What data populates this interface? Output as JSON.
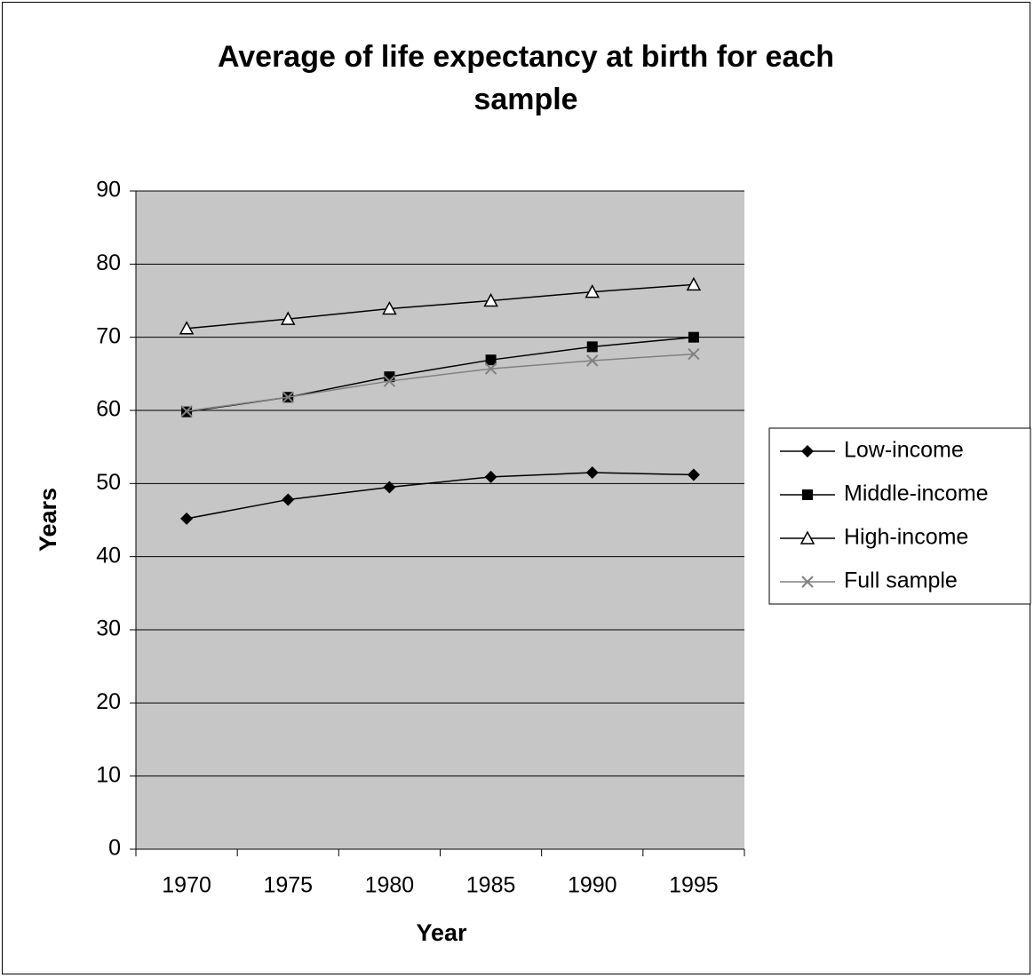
{
  "chart_data": {
    "type": "line",
    "title": "Average of life expectancy at birth for each sample",
    "x_label": "Year",
    "y_label": "Years",
    "categories": [
      "1970",
      "1975",
      "1980",
      "1985",
      "1990",
      "1995"
    ],
    "series": [
      {
        "name": "Low-income",
        "color": "#000000",
        "marker": "diamond",
        "values": [
          45.2,
          47.8,
          49.5,
          50.9,
          51.5,
          51.2
        ]
      },
      {
        "name": "Middle-income",
        "color": "#000000",
        "marker": "square",
        "values": [
          59.8,
          61.8,
          64.6,
          66.9,
          68.7,
          70.0
        ]
      },
      {
        "name": "High-income",
        "color": "#000000",
        "marker": "triangle",
        "values": [
          71.2,
          72.5,
          73.9,
          75.0,
          76.2,
          77.2
        ]
      },
      {
        "name": "Full sample",
        "color": "#808080",
        "marker": "x",
        "values": [
          59.9,
          61.8,
          64.0,
          65.7,
          66.8,
          67.7
        ]
      }
    ],
    "ylim": [
      0,
      90
    ],
    "yticks": [
      0,
      10,
      20,
      30,
      40,
      50,
      60,
      70,
      80,
      90
    ],
    "grid": true,
    "legend": "right"
  }
}
